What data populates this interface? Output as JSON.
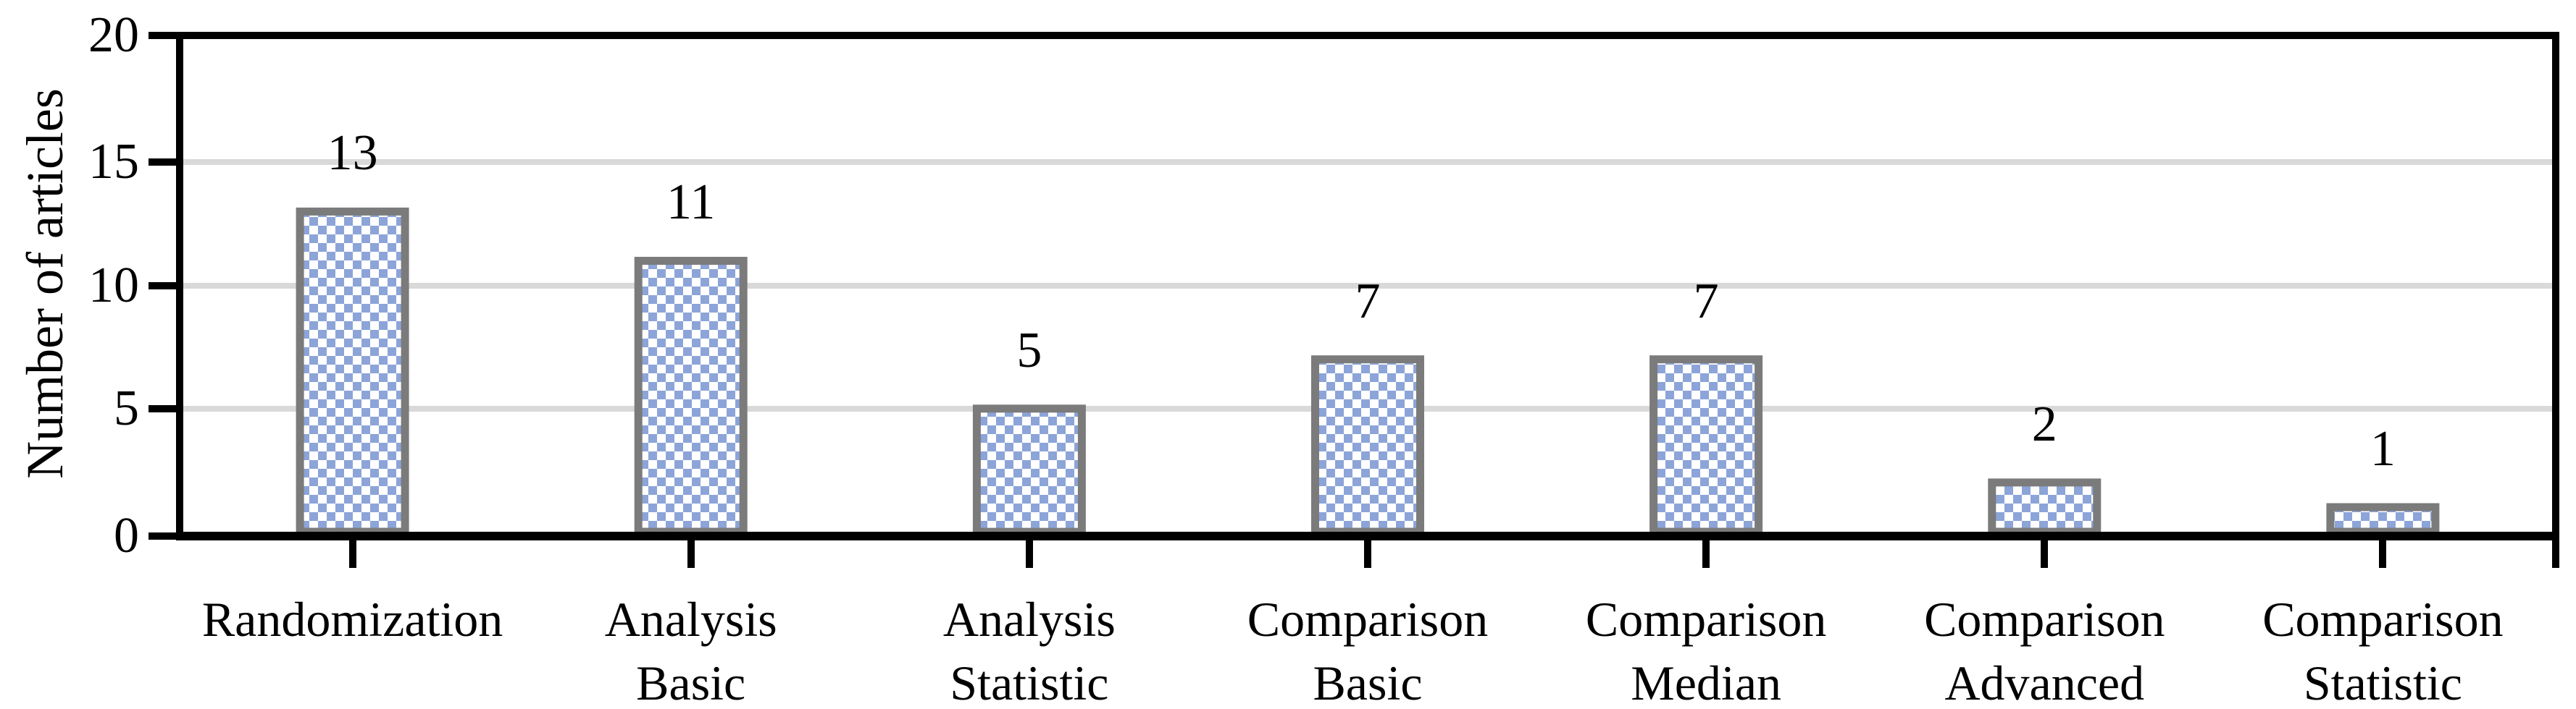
{
  "figure": {
    "background_color": "#FFFFFF"
  },
  "chart_data": {
    "type": "bar",
    "title": "",
    "xlabel": "",
    "ylabel": "Number of articles",
    "categories": [
      "Randomization",
      "Analysis Basic",
      "Analysis Statistic",
      "Comparison Basic",
      "Comparison Median",
      "Comparison Advanced",
      "Comparison Statistic"
    ],
    "category_label_lines": [
      [
        "Randomization"
      ],
      [
        "Analysis",
        "Basic"
      ],
      [
        "Analysis",
        "Statistic"
      ],
      [
        "Comparison",
        "Basic"
      ],
      [
        "Comparison",
        "Median"
      ],
      [
        "Comparison",
        "Advanced"
      ],
      [
        "Comparison",
        "Statistic"
      ]
    ],
    "values": [
      13,
      11,
      5,
      7,
      7,
      2,
      1
    ],
    "data_labels": [
      "13",
      "11",
      "5",
      "7",
      "7",
      "2",
      "1"
    ],
    "ylim": [
      0,
      20
    ],
    "yticks": [
      0,
      5,
      10,
      15,
      20
    ],
    "gridlines_at": [
      5,
      10,
      15
    ],
    "grid": "horizontal",
    "legend": "none",
    "bar_pattern": "dotted diagonal crosshatch"
  },
  "style": {
    "bar_fill_color": "#8CA4D8",
    "bar_border_color": "#7B7B7B",
    "axis_color": "#000000",
    "gridline_color": "#D9D9D9",
    "text_color": "#000000"
  }
}
